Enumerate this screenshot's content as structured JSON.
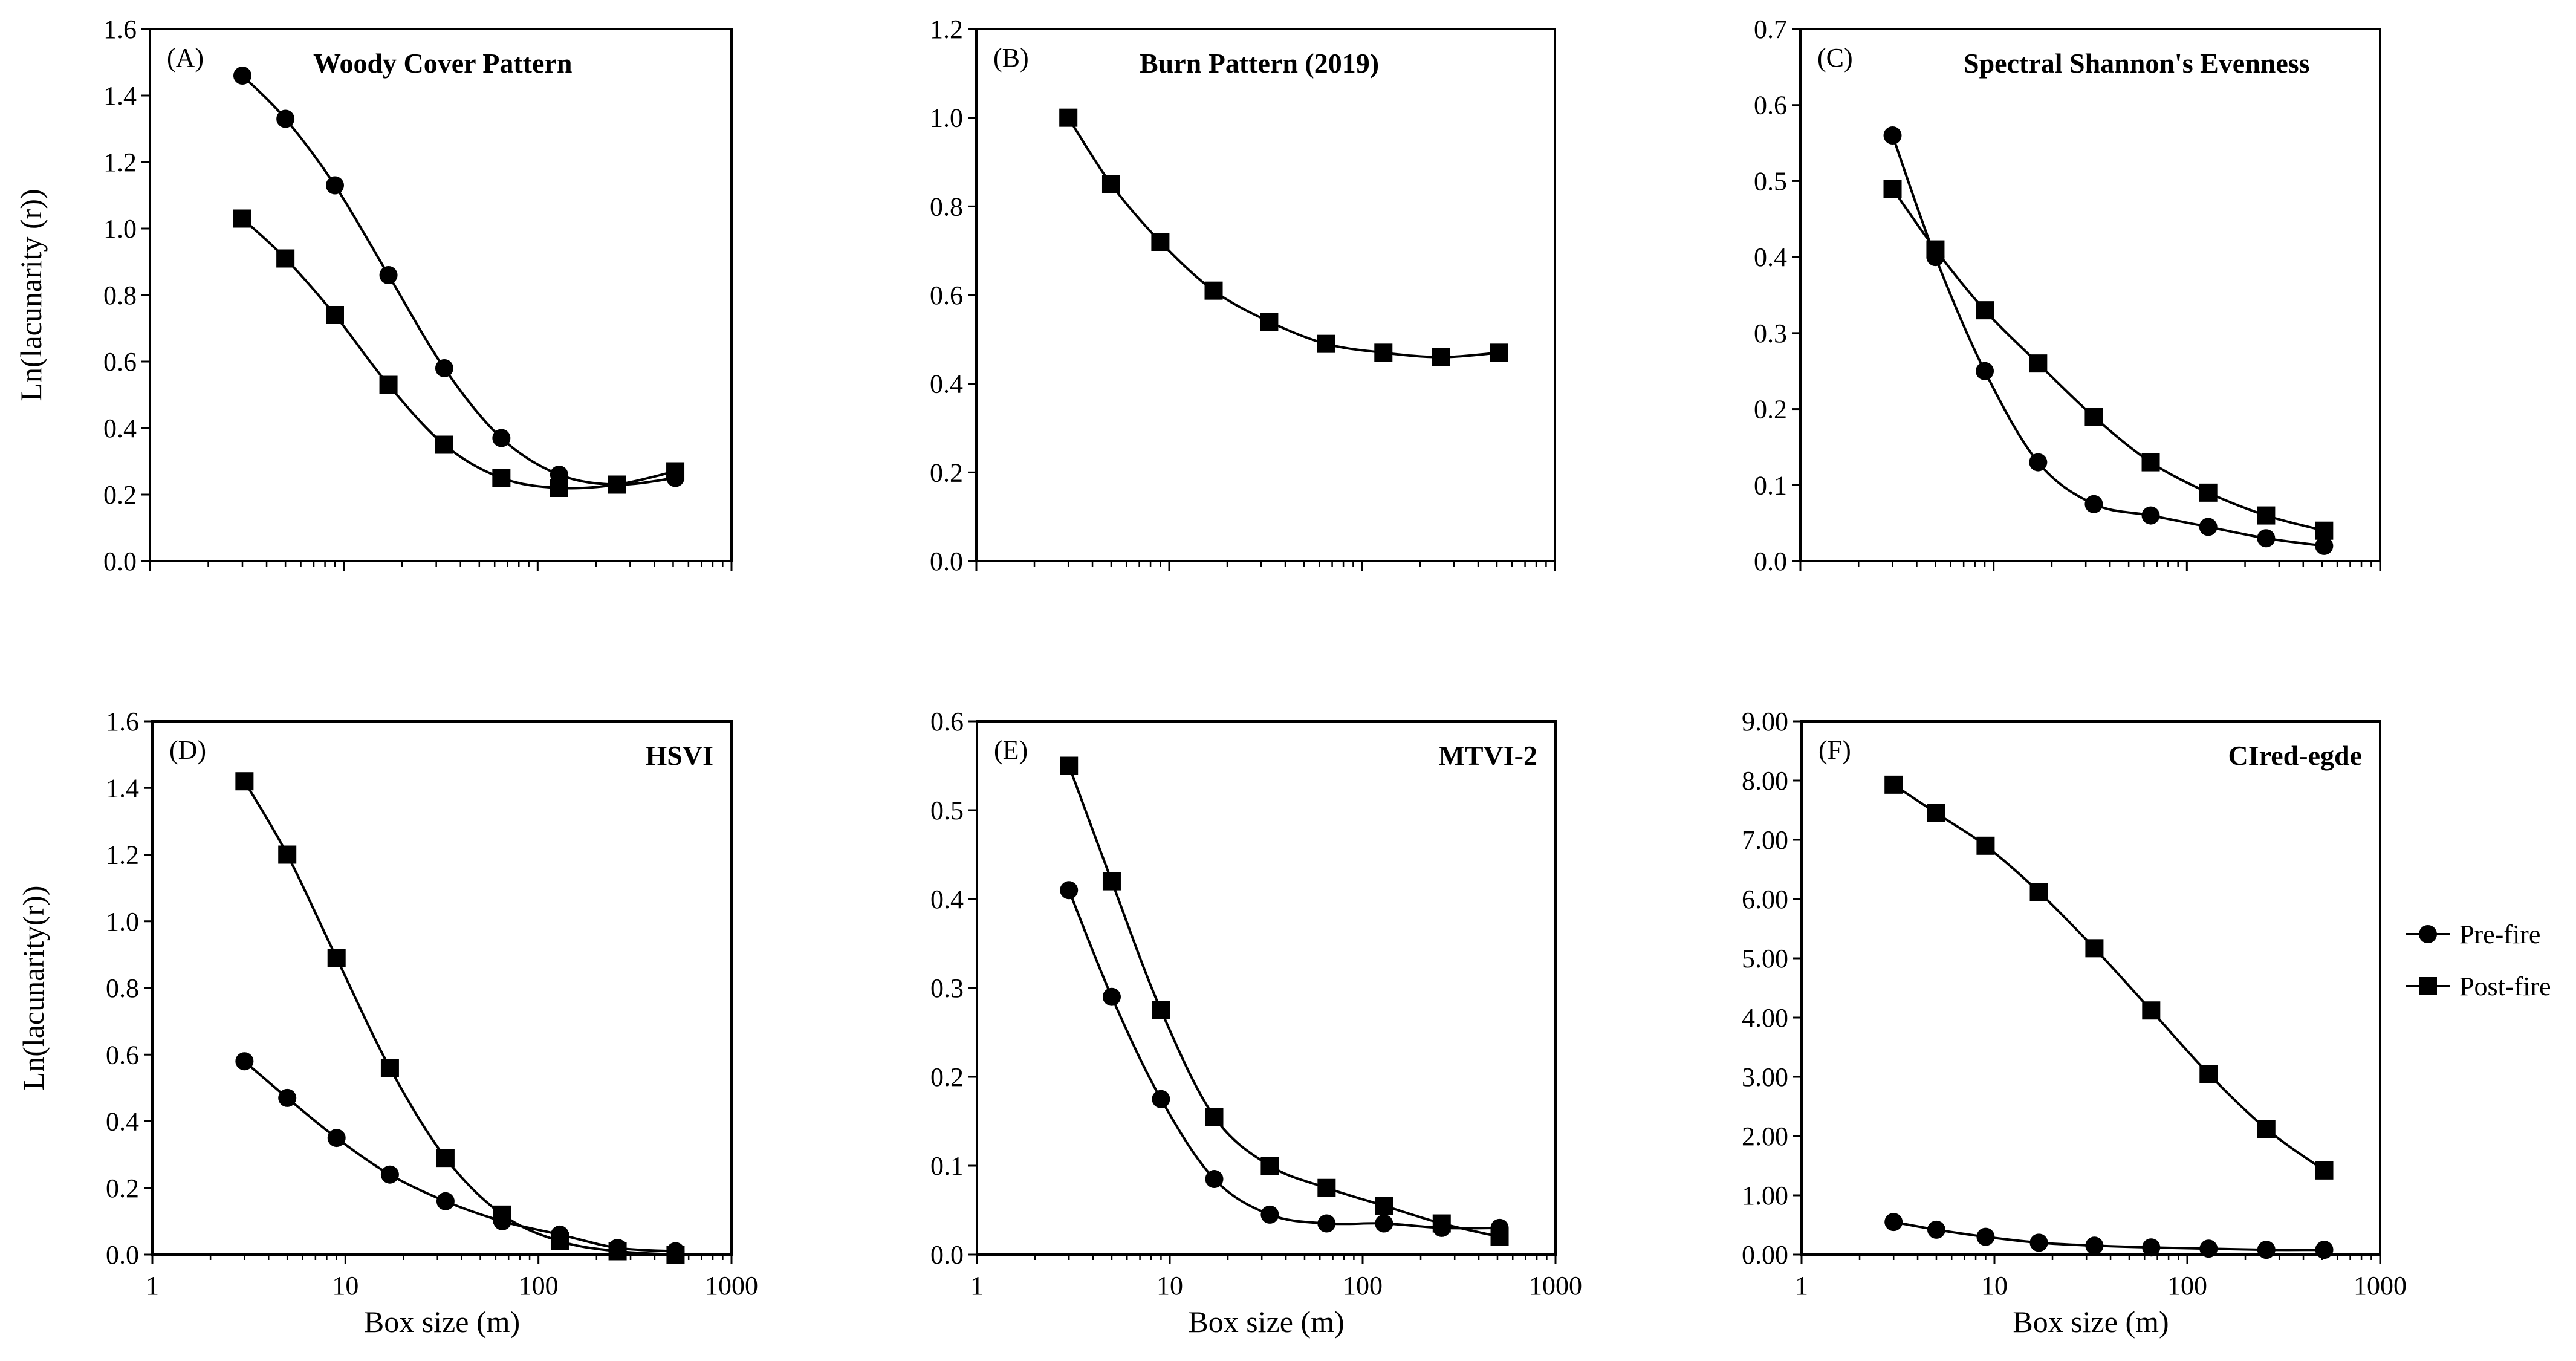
{
  "chart_data": [
    {
      "type": "line",
      "panel": "(A)",
      "title": "Woody Cover Pattern",
      "ylabel": "Ln(lacunarity (r))",
      "xlabel": "",
      "xscale": "log",
      "xlim": [
        1,
        1000
      ],
      "ylim": [
        0,
        1.6
      ],
      "ystep": 0.2,
      "ydecimals": 1,
      "show_x_tick_labels": false,
      "x": [
        3,
        5,
        9,
        17,
        33,
        65,
        129,
        257,
        513
      ],
      "series": [
        {
          "name": "Pre-fire",
          "marker": "circle",
          "values": [
            1.46,
            1.33,
            1.13,
            0.86,
            0.58,
            0.37,
            0.26,
            0.23,
            0.25
          ]
        },
        {
          "name": "Post-fire",
          "marker": "square",
          "values": [
            1.03,
            0.91,
            0.74,
            0.53,
            0.35,
            0.25,
            0.22,
            0.23,
            0.27
          ]
        }
      ]
    },
    {
      "type": "line",
      "panel": "(B)",
      "title": "Burn Pattern (2019)",
      "ylabel": "",
      "xlabel": "",
      "xscale": "log",
      "xlim": [
        1,
        1000
      ],
      "ylim": [
        0,
        1.2
      ],
      "ystep": 0.2,
      "ydecimals": 1,
      "show_x_tick_labels": false,
      "x": [
        3,
        5,
        9,
        17,
        33,
        65,
        129,
        257,
        513
      ],
      "series": [
        {
          "name": "Post-fire",
          "marker": "square",
          "values": [
            1.0,
            0.85,
            0.72,
            0.61,
            0.54,
            0.49,
            0.47,
            0.46,
            0.47
          ]
        }
      ]
    },
    {
      "type": "line",
      "panel": "(C)",
      "title": "Spectral Shannon's Evenness",
      "ylabel": "",
      "xlabel": "",
      "xscale": "log",
      "xlim": [
        1,
        1000
      ],
      "ylim": [
        0,
        0.7
      ],
      "ystep": 0.1,
      "ydecimals": 1,
      "show_x_tick_labels": false,
      "x": [
        3,
        5,
        9,
        17,
        33,
        65,
        129,
        257,
        513
      ],
      "series": [
        {
          "name": "Pre-fire",
          "marker": "circle",
          "values": [
            0.56,
            0.4,
            0.25,
            0.13,
            0.075,
            0.06,
            0.045,
            0.03,
            0.02
          ]
        },
        {
          "name": "Post-fire",
          "marker": "square",
          "values": [
            0.49,
            0.41,
            0.33,
            0.26,
            0.19,
            0.13,
            0.09,
            0.06,
            0.04
          ]
        }
      ]
    },
    {
      "type": "line",
      "panel": "(D)",
      "title": "HSVI",
      "ylabel": "Ln(lacunarity(r))",
      "xlabel": "Box size (m)",
      "xscale": "log",
      "xlim": [
        1,
        1000
      ],
      "ylim": [
        0,
        1.6
      ],
      "ystep": 0.2,
      "ydecimals": 1,
      "show_x_tick_labels": true,
      "x": [
        3,
        5,
        9,
        17,
        33,
        65,
        129,
        257,
        513
      ],
      "series": [
        {
          "name": "Pre-fire",
          "marker": "circle",
          "values": [
            0.58,
            0.47,
            0.35,
            0.24,
            0.16,
            0.1,
            0.06,
            0.02,
            0.01
          ]
        },
        {
          "name": "Post-fire",
          "marker": "square",
          "values": [
            1.42,
            1.2,
            0.89,
            0.56,
            0.29,
            0.12,
            0.04,
            0.01,
            0.0
          ]
        }
      ]
    },
    {
      "type": "line",
      "panel": "(E)",
      "title": "MTVI-2",
      "ylabel": "",
      "xlabel": "Box size (m)",
      "xscale": "log",
      "xlim": [
        1,
        1000
      ],
      "ylim": [
        0,
        0.6
      ],
      "ystep": 0.1,
      "ydecimals": 1,
      "show_x_tick_labels": true,
      "x": [
        3,
        5,
        9,
        17,
        33,
        65,
        129,
        257,
        513
      ],
      "series": [
        {
          "name": "Pre-fire",
          "marker": "circle",
          "values": [
            0.41,
            0.29,
            0.175,
            0.085,
            0.045,
            0.035,
            0.035,
            0.03,
            0.03
          ]
        },
        {
          "name": "Post-fire",
          "marker": "square",
          "values": [
            0.55,
            0.42,
            0.275,
            0.155,
            0.1,
            0.075,
            0.055,
            0.035,
            0.02
          ]
        }
      ]
    },
    {
      "type": "line",
      "panel": "(F)",
      "title": "CIred-egde",
      "ylabel": "",
      "xlabel": "Box size (m)",
      "xscale": "log",
      "xlim": [
        1,
        1000
      ],
      "ylim": [
        0,
        9
      ],
      "ystep": 1,
      "ydecimals": 2,
      "show_x_tick_labels": true,
      "x": [
        3,
        5,
        9,
        17,
        33,
        65,
        129,
        257,
        513
      ],
      "series": [
        {
          "name": "Pre-fire",
          "marker": "circle",
          "values": [
            0.55,
            0.42,
            0.3,
            0.2,
            0.15,
            0.12,
            0.1,
            0.08,
            0.08
          ]
        },
        {
          "name": "Post-fire",
          "marker": "square",
          "values": [
            7.93,
            7.45,
            6.9,
            6.12,
            5.17,
            4.12,
            3.05,
            2.12,
            1.42
          ]
        }
      ]
    }
  ],
  "legend": {
    "location": "right",
    "entries": [
      {
        "label": "Pre-fire",
        "marker": "circle"
      },
      {
        "label": "Post-fire",
        "marker": "square"
      }
    ]
  },
  "colors": {
    "line": "#000000",
    "background": "#ffffff"
  }
}
